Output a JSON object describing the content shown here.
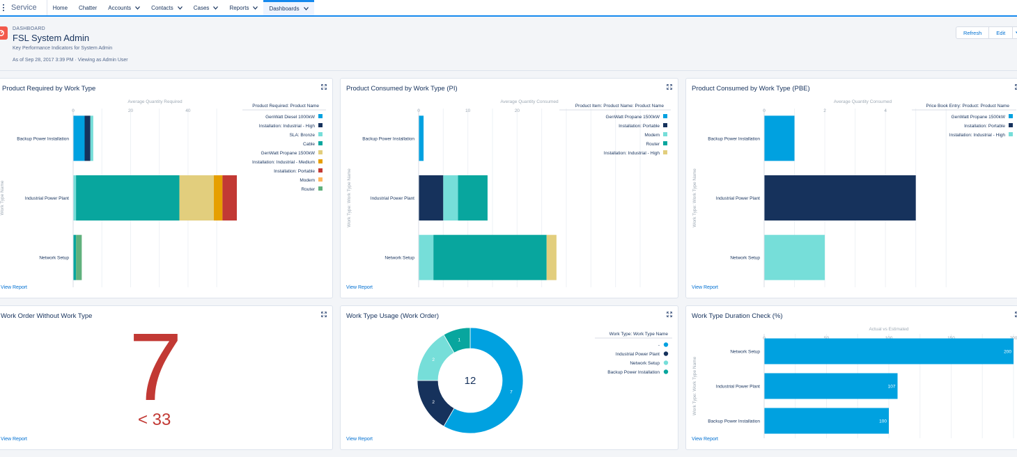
{
  "nav": {
    "app_name": "Service",
    "tabs": [
      {
        "label": "Home",
        "dropdown": false
      },
      {
        "label": "Chatter",
        "dropdown": false
      },
      {
        "label": "Accounts",
        "dropdown": true
      },
      {
        "label": "Contacts",
        "dropdown": true
      },
      {
        "label": "Cases",
        "dropdown": true
      },
      {
        "label": "Reports",
        "dropdown": true
      },
      {
        "label": "Dashboards",
        "dropdown": true,
        "active": true
      }
    ]
  },
  "header": {
    "kicker": "DASHBOARD",
    "title": "FSL System Admin",
    "subtitle": "Key Performance Indicators for System Admin",
    "as_of": "As of Sep 28, 2017 3:39 PM · Viewing as Admin User",
    "refresh_label": "Refresh",
    "edit_label": "Edit"
  },
  "colors": {
    "accent": "#1589ee",
    "link": "#0070d2",
    "metric": "#c23934"
  },
  "view_report_label": "View Report",
  "chart_data": [
    {
      "id": "product-required",
      "type": "bar",
      "orientation": "horizontal",
      "stacked": true,
      "title": "Product Required by Work Type",
      "xlabel": "Average Quantity Required",
      "ylabel": "Work Type Name",
      "xticks": [
        0,
        20,
        40
      ],
      "xlim": [
        0,
        57
      ],
      "legend_title": "Product Required: Product Name",
      "categories": [
        "Backup Power Installation",
        "Industrial Power Plant",
        "Network Setup"
      ],
      "series": [
        {
          "name": "GenWatt Diesel 1000kW",
          "color": "#00a1e0",
          "values": [
            4,
            0,
            0
          ]
        },
        {
          "name": "Installation: Industrial - High",
          "color": "#16325c",
          "values": [
            2,
            0,
            0
          ]
        },
        {
          "name": "SLA: Bronze",
          "color": "#76ded9",
          "values": [
            1,
            1,
            0
          ]
        },
        {
          "name": "Cable",
          "color": "#08a69e",
          "values": [
            0,
            36,
            1
          ]
        },
        {
          "name": "GenWatt Propane 1500kW",
          "color": "#e2ce7d",
          "values": [
            0,
            12,
            0
          ]
        },
        {
          "name": "Installation: Industrial - Medium",
          "color": "#e69f00",
          "values": [
            0,
            3,
            0
          ]
        },
        {
          "name": "Installation: Portable",
          "color": "#c23934",
          "values": [
            0,
            5,
            0
          ]
        },
        {
          "name": "Modem",
          "color": "#ffb75d",
          "values": [
            0,
            0,
            0
          ]
        },
        {
          "name": "Router",
          "color": "#60b17d",
          "values": [
            0,
            0,
            2
          ]
        }
      ]
    },
    {
      "id": "product-consumed-pi",
      "type": "bar",
      "orientation": "horizontal",
      "stacked": true,
      "title": "Product Consumed by Work Type (PI)",
      "xlabel": "Average Quantity Consumed",
      "ylabel": "Work Type: Work Type Name",
      "xticks": [
        0,
        10,
        20
      ],
      "xlim": [
        0,
        45
      ],
      "legend_title": "Product Item: Product Name: Product Name",
      "categories": [
        "Backup Power Installation",
        "Industrial Power Plant",
        "Network Setup"
      ],
      "series": [
        {
          "name": "GenWatt Propane 1500kW",
          "color": "#00a1e0",
          "values": [
            1,
            0,
            0
          ]
        },
        {
          "name": "Installation: Portable",
          "color": "#16325c",
          "values": [
            0,
            5,
            0
          ]
        },
        {
          "name": "Modem",
          "color": "#76ded9",
          "values": [
            0,
            3,
            3
          ]
        },
        {
          "name": "Router",
          "color": "#08a69e",
          "values": [
            0,
            6,
            23
          ]
        },
        {
          "name": "Installation: Industrial - High",
          "color": "#e2ce7d",
          "values": [
            0,
            0,
            2
          ]
        }
      ]
    },
    {
      "id": "product-consumed-pbe",
      "type": "bar",
      "orientation": "horizontal",
      "stacked": true,
      "title": "Product Consumed by Work Type (PBE)",
      "xlabel": "Average Quantity Consumed",
      "ylabel": "Work Type: Work Type Name",
      "xticks": [
        0,
        2,
        4
      ],
      "xlim": [
        0,
        6.5
      ],
      "legend_title": "Price Book Entry: Product: Product Name",
      "categories": [
        "Backup Power Installation",
        "Industrial Power Plant",
        "Network Setup"
      ],
      "series": [
        {
          "name": "GenWatt Propane 1500kW",
          "color": "#00a1e0",
          "values": [
            1,
            0,
            0
          ]
        },
        {
          "name": "Installation: Portable",
          "color": "#16325c",
          "values": [
            0,
            5,
            0
          ]
        },
        {
          "name": "Installation: Industrial - High",
          "color": "#76ded9",
          "values": [
            0,
            0,
            2
          ]
        }
      ]
    },
    {
      "id": "work-type-usage",
      "type": "pie",
      "donut": true,
      "title": "Work Type Usage (Work Order)",
      "total": "12",
      "legend_title": "Work Type: Work Type Name",
      "slices": [
        {
          "name": "-",
          "value": 7,
          "color": "#00a1e0"
        },
        {
          "name": "Industrial Power Plant",
          "value": 2,
          "color": "#16325c"
        },
        {
          "name": "Network Setup",
          "value": 2,
          "color": "#76ded9"
        },
        {
          "name": "Backup Power Installation",
          "value": 1,
          "color": "#08a69e"
        }
      ]
    },
    {
      "id": "duration-check",
      "type": "bar",
      "orientation": "horizontal",
      "title": "Work Type Duration Check (%)",
      "xlabel": "Actual vs Estimated",
      "ylabel": "Work Type: Work Type Name",
      "xticks": [
        0,
        50,
        100,
        150,
        200
      ],
      "xlim": [
        0,
        200
      ],
      "categories": [
        "Network Setup",
        "Industrial Power Plant",
        "Backup Power Installation"
      ],
      "values": [
        200,
        107,
        100
      ],
      "color": "#00a1e0"
    }
  ],
  "metric_card": {
    "title": "Work Order Without Work Type",
    "value": "7",
    "target": "< 33"
  }
}
